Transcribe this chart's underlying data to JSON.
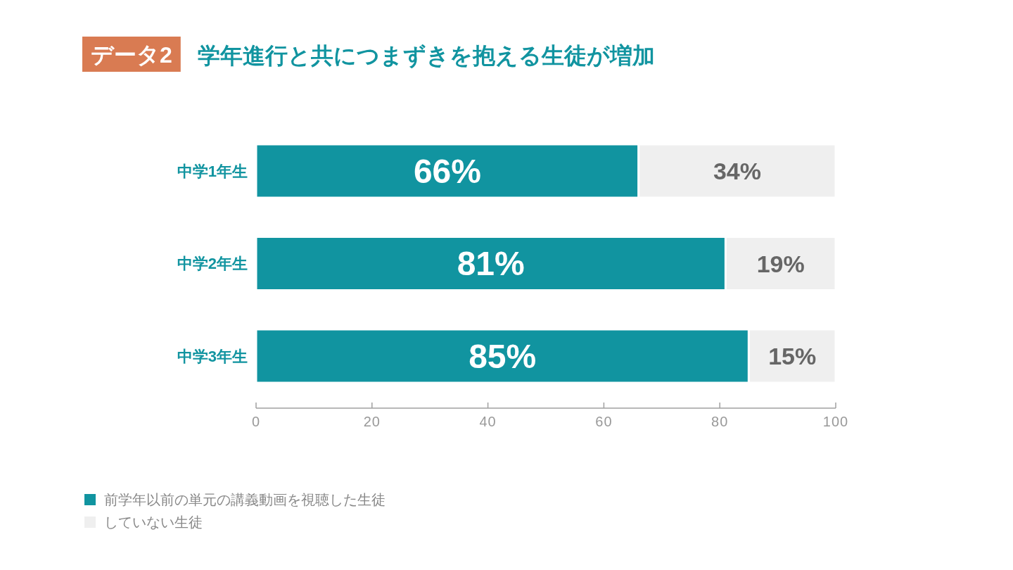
{
  "chart_data": {
    "type": "bar",
    "orientation": "horizontal",
    "stacked": true,
    "title": "学年進行と共につまずきを抱える生徒が増加",
    "annotations": [
      "データ2"
    ],
    "categories": [
      "中学1年生",
      "中学2年生",
      "中学3年生"
    ],
    "series": [
      {
        "name": "前学年以前の単元の講義動画を視聴した生徒",
        "color": "#1194a0",
        "values": [
          66,
          81,
          85
        ],
        "value_labels": [
          "66%",
          "81%",
          "85%"
        ]
      },
      {
        "name": "していない生徒",
        "color": "#efefef",
        "values": [
          34,
          19,
          15
        ],
        "value_labels": [
          "34%",
          "19%",
          "15%"
        ]
      }
    ],
    "xlim": [
      0,
      100
    ],
    "xticks": [
      0,
      20,
      40,
      60,
      80,
      100
    ],
    "legend": "bottom left"
  }
}
